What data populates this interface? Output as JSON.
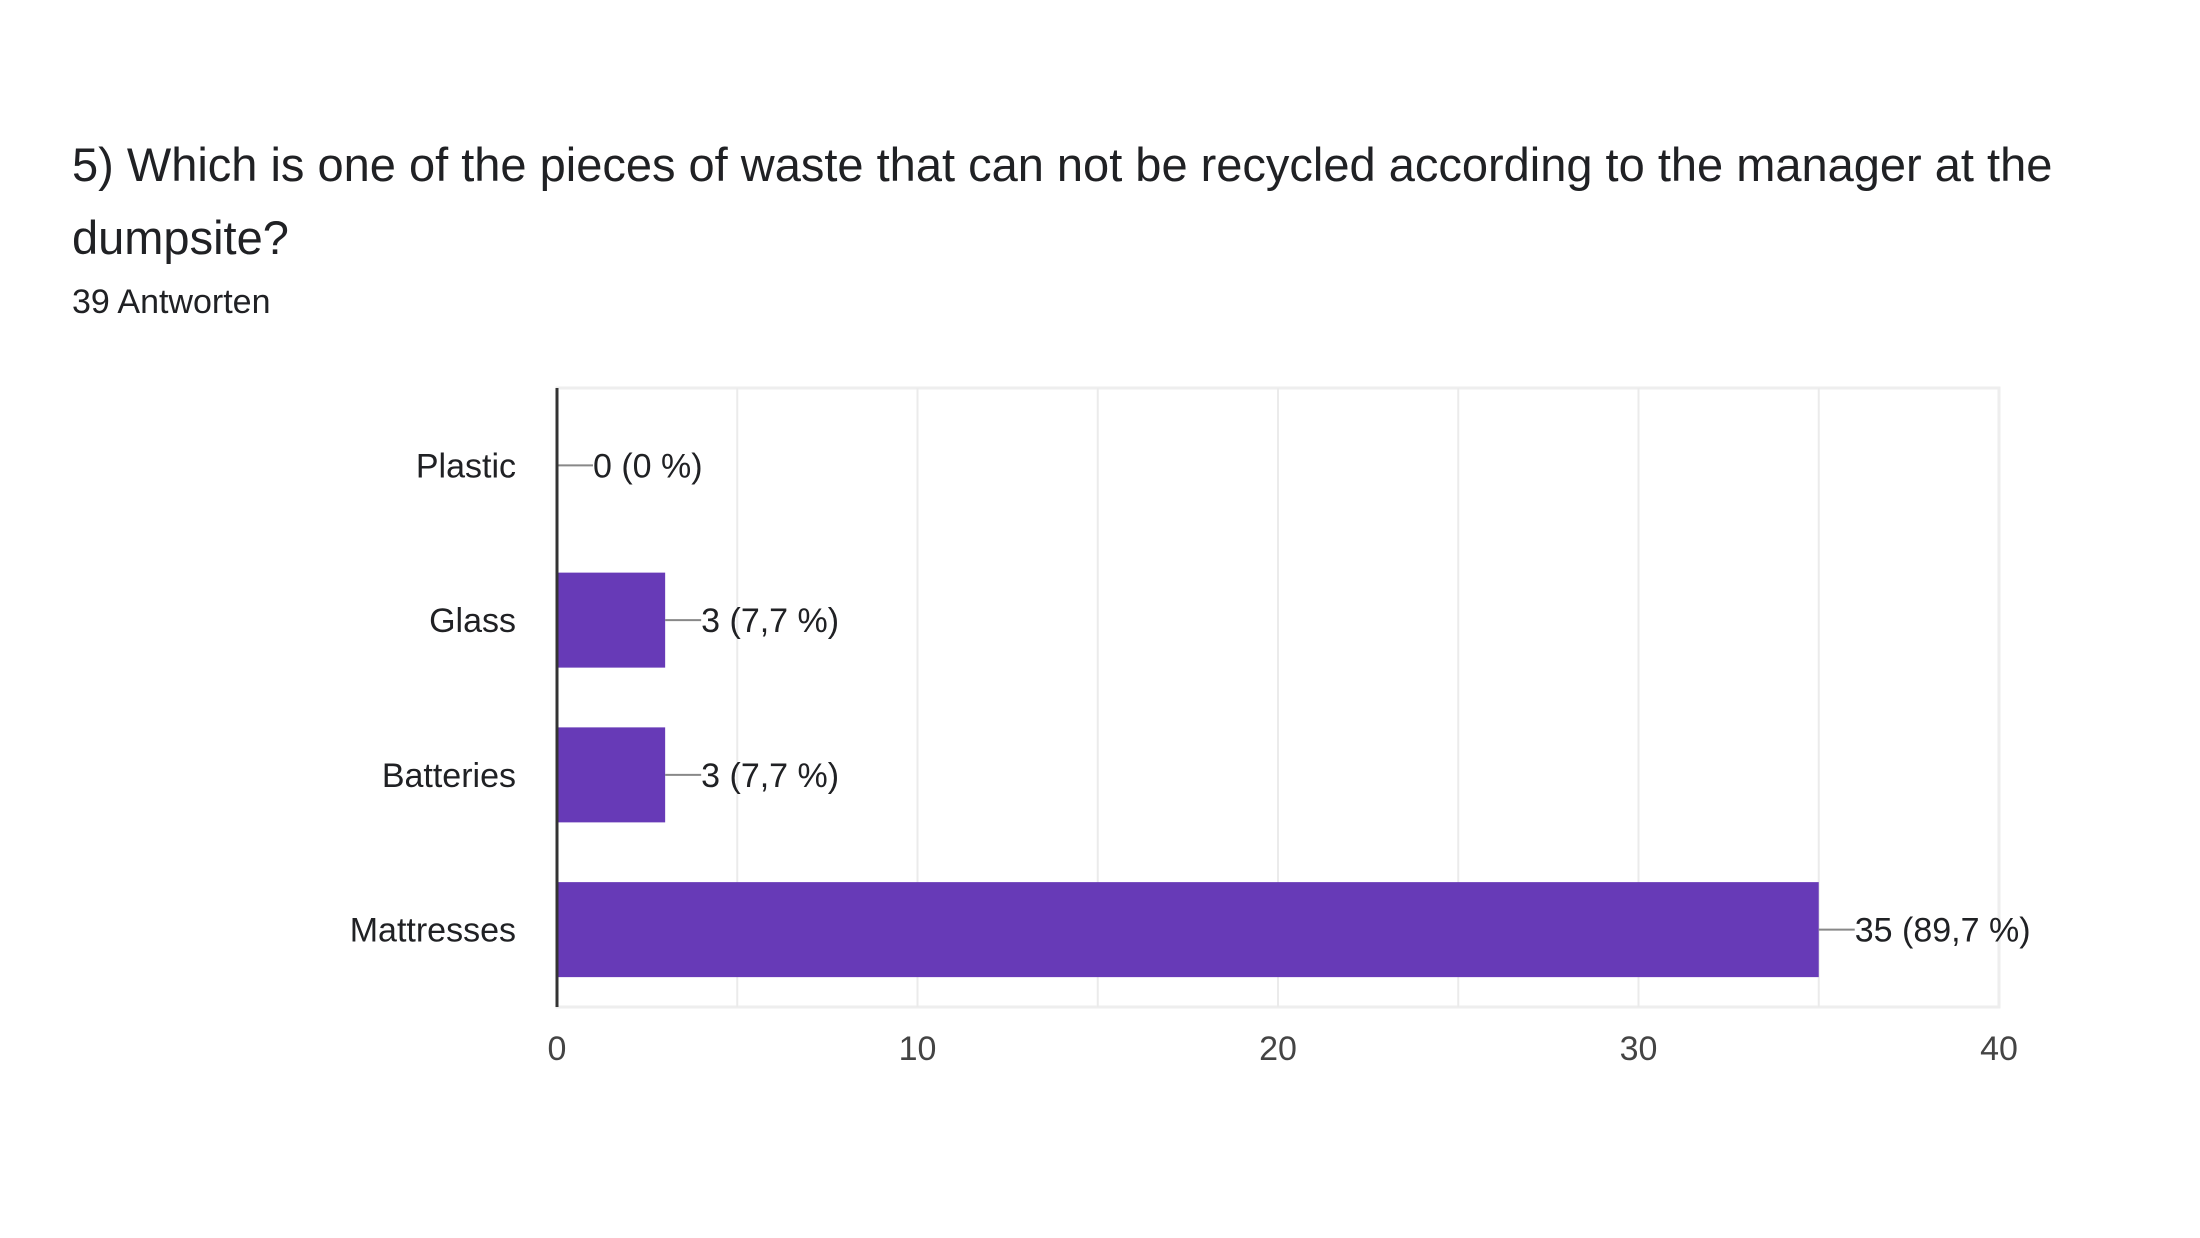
{
  "question": {
    "title": "5) Which is one of the pieces of waste that can not be recycled according to the manager at the dumpsite?",
    "response_count": "39 Antworten"
  },
  "chart_data": {
    "type": "bar",
    "orientation": "horizontal",
    "categories": [
      "Plastic",
      "Glass",
      "Batteries",
      "Mattresses"
    ],
    "values": [
      0,
      3,
      3,
      35
    ],
    "data_labels": [
      "0 (0 %)",
      "3 (7,7 %)",
      "3 (7,7 %)",
      "35 (89,7 %)"
    ],
    "xlim": [
      0,
      40
    ],
    "x_ticks": [
      0,
      10,
      20,
      30,
      40
    ],
    "grid": true,
    "bar_color": "#673ab7",
    "title": "",
    "xlabel": "",
    "ylabel": ""
  }
}
